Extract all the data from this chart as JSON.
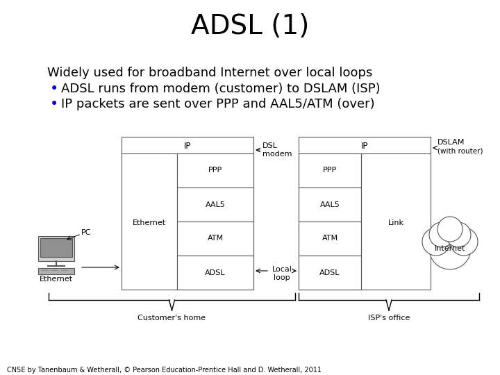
{
  "title": "ADSL (1)",
  "title_fontsize": 28,
  "title_color": "#000000",
  "bg_color": "#ffffff",
  "text_color": "#000000",
  "bullet_color": "#0000cc",
  "heading": "Widely used for broadband Internet over local loops",
  "bullet1": "ADSL runs from modem (customer) to DSLAM (ISP)",
  "bullet2": "IP packets are sent over PPP and AAL5/ATM (over)",
  "heading_fontsize": 13,
  "bullet_fontsize": 13,
  "footer": "CN5E by Tanenbaum & Wetherall, © Pearson Education-Prentice Hall and D. Wetherall, 2011",
  "footer_fontsize": 7
}
